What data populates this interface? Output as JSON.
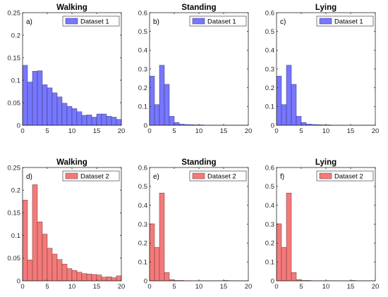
{
  "chart_data": [
    {
      "type": "bar",
      "panel_label": "a)",
      "title": "Walking",
      "legend": "Dataset 1",
      "color": "#7777ff",
      "bin_width": 1,
      "x": [
        0,
        1,
        2,
        3,
        4,
        5,
        6,
        7,
        8,
        9,
        10,
        11,
        12,
        13,
        14,
        15,
        16,
        17,
        18,
        19
      ],
      "values": [
        0.133,
        0.096,
        0.12,
        0.121,
        0.09,
        0.083,
        0.072,
        0.063,
        0.049,
        0.042,
        0.037,
        0.03,
        0.022,
        0.023,
        0.018,
        0.025,
        0.025,
        0.02,
        0.018,
        0.013
      ],
      "xlim": [
        0,
        20
      ],
      "ylim": [
        0,
        0.25
      ],
      "xticks": [
        "0",
        "5",
        "10",
        "15",
        "20"
      ],
      "yticks": [
        "0",
        "0.05",
        "0.1",
        "0.15",
        "0.2",
        "0.25"
      ]
    },
    {
      "type": "bar",
      "panel_label": "b)",
      "title": "Standing",
      "legend": "Dataset 1",
      "color": "#7777ff",
      "bin_width": 1,
      "x": [
        0,
        1,
        2,
        3,
        4,
        5,
        6,
        7,
        8,
        9,
        10,
        11,
        12,
        13,
        14,
        15,
        16,
        17,
        18,
        19
      ],
      "values": [
        0.262,
        0.11,
        0.32,
        0.218,
        0.048,
        0.015,
        0.006,
        0.004,
        0.003,
        0.002,
        0.002,
        0.001,
        0.001,
        0.001,
        0.001,
        0.001,
        0.001,
        0.001,
        0.001,
        0.001
      ],
      "xlim": [
        0,
        20
      ],
      "ylim": [
        0,
        0.6
      ],
      "xticks": [
        "0",
        "5",
        "10",
        "15",
        "20"
      ],
      "yticks": [
        "0",
        "0.1",
        "0.2",
        "0.3",
        "0.4",
        "0.5",
        "0.6"
      ]
    },
    {
      "type": "bar",
      "panel_label": "c)",
      "title": "Lying",
      "legend": "Dataset 1",
      "color": "#7777ff",
      "bin_width": 1,
      "x": [
        0,
        1,
        2,
        3,
        4,
        5,
        6,
        7,
        8,
        9,
        10,
        11,
        12,
        13,
        14,
        15,
        16,
        17,
        18,
        19
      ],
      "values": [
        0.262,
        0.11,
        0.32,
        0.218,
        0.048,
        0.015,
        0.006,
        0.004,
        0.003,
        0.002,
        0.002,
        0.001,
        0.001,
        0.001,
        0.001,
        0.001,
        0.001,
        0.001,
        0.001,
        0.001
      ],
      "xlim": [
        0,
        20
      ],
      "ylim": [
        0,
        0.6
      ],
      "xticks": [
        "0",
        "5",
        "10",
        "15",
        "20"
      ],
      "yticks": [
        "0",
        "0.1",
        "0.2",
        "0.3",
        "0.4",
        "0.5",
        "0.6"
      ]
    },
    {
      "type": "bar",
      "panel_label": "d)",
      "title": "Walking",
      "legend": "Dataset 2",
      "color": "#f47a7a",
      "bin_width": 1,
      "x": [
        0,
        1,
        2,
        3,
        4,
        5,
        6,
        7,
        8,
        9,
        10,
        11,
        12,
        13,
        14,
        15,
        16,
        17,
        18,
        19
      ],
      "values": [
        0.178,
        0.046,
        0.212,
        0.13,
        0.103,
        0.072,
        0.059,
        0.047,
        0.037,
        0.027,
        0.023,
        0.019,
        0.016,
        0.015,
        0.014,
        0.013,
        0.008,
        0.009,
        0.007,
        0.011
      ],
      "xlim": [
        0,
        20
      ],
      "ylim": [
        0,
        0.25
      ],
      "xticks": [
        "0",
        "5",
        "10",
        "15",
        "20"
      ],
      "yticks": [
        "0",
        "0.05",
        "0.1",
        "0.15",
        "0.2",
        "0.25"
      ]
    },
    {
      "type": "bar",
      "panel_label": "e)",
      "title": "Standing",
      "legend": "Dataset 2",
      "color": "#f47a7a",
      "bin_width": 1,
      "x": [
        0,
        1,
        2,
        3,
        4,
        5,
        6,
        7,
        8,
        9,
        10,
        11,
        12,
        13,
        14,
        15,
        16,
        17,
        18,
        19
      ],
      "values": [
        0.302,
        0.177,
        0.465,
        0.044,
        0.006,
        0.002,
        0.002,
        0.001,
        0.001,
        0.001,
        0.001,
        0.001,
        0.001,
        0.001,
        0.001,
        0.002,
        0.001,
        0.001,
        0.001,
        0.001
      ],
      "xlim": [
        0,
        20
      ],
      "ylim": [
        0,
        0.6
      ],
      "xticks": [
        "0",
        "5",
        "10",
        "15",
        "20"
      ],
      "yticks": [
        "0",
        "0.1",
        "0.2",
        "0.3",
        "0.4",
        "0.5",
        "0.6"
      ]
    },
    {
      "type": "bar",
      "panel_label": "f)",
      "title": "Lying",
      "legend": "Dataset 2",
      "color": "#f47a7a",
      "bin_width": 1,
      "x": [
        0,
        1,
        2,
        3,
        4,
        5,
        6,
        7,
        8,
        9,
        10,
        11,
        12,
        13,
        14,
        15,
        16,
        17,
        18,
        19
      ],
      "values": [
        0.302,
        0.177,
        0.465,
        0.044,
        0.006,
        0.002,
        0.002,
        0.001,
        0.001,
        0.001,
        0.001,
        0.001,
        0.001,
        0.001,
        0.001,
        0.002,
        0.001,
        0.001,
        0.001,
        0.001
      ],
      "xlim": [
        0,
        20
      ],
      "ylim": [
        0,
        0.6
      ],
      "xticks": [
        "0",
        "5",
        "10",
        "15",
        "20"
      ],
      "yticks": [
        "0",
        "0.1",
        "0.2",
        "0.3",
        "0.4",
        "0.5",
        "0.6"
      ]
    }
  ]
}
